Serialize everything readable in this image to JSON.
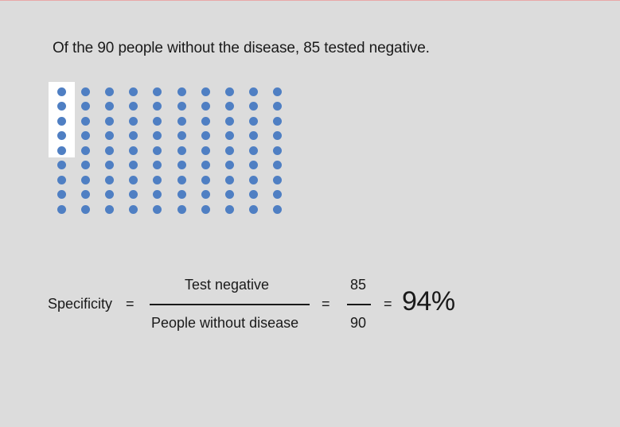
{
  "headline": "Of the 90 people without the disease, 85 tested negative.",
  "dot_grid": {
    "columns": 10,
    "rows": 9,
    "total": 90,
    "highlighted": 5,
    "dot_color": "#4f7fc3",
    "highlight_color": "#ffffff"
  },
  "formula": {
    "label": "Specificity",
    "equals1": "=",
    "numerator_label": "Test negative",
    "denominator_label": "People without disease",
    "equals2": "=",
    "numerator_value": "85",
    "denominator_value": "90",
    "equals3": "=",
    "result": "94%"
  }
}
